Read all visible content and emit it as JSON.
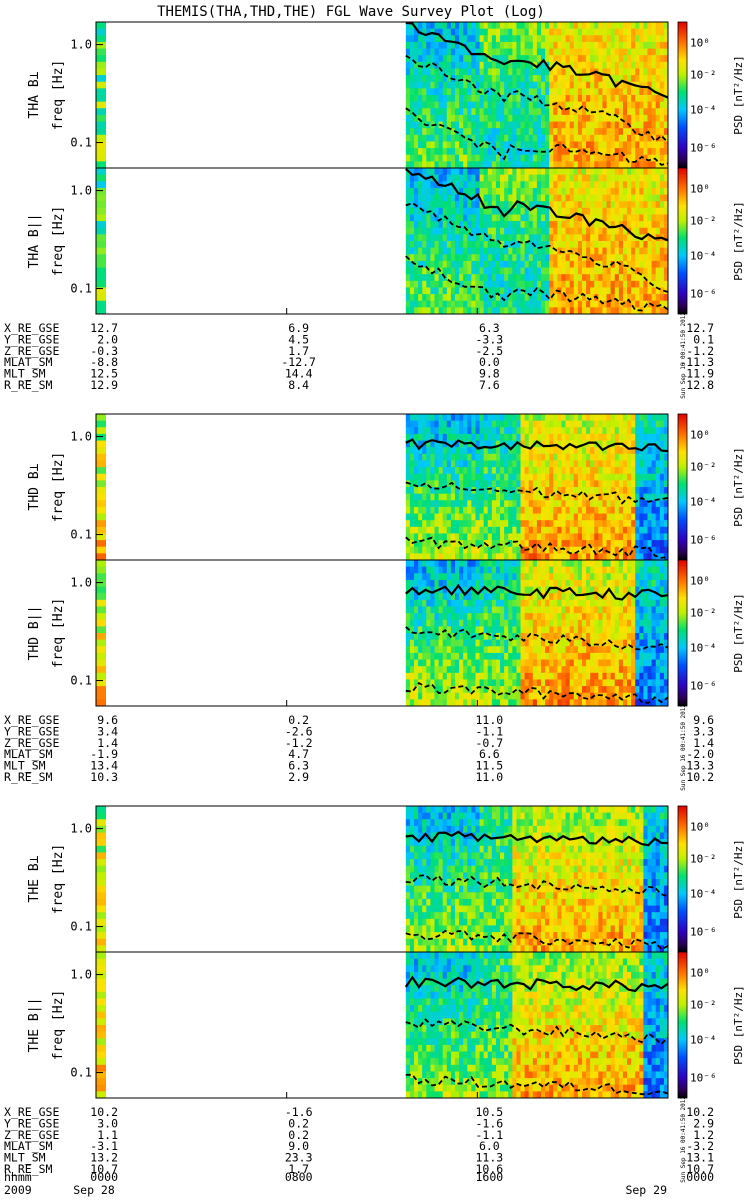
{
  "chart_data": {
    "type": "heatmap",
    "title": "THEMIS(THA,THD,THE) FGL Wave Survey Plot (Log)",
    "x_axis": {
      "row_label": "hhmm",
      "date_label": "2009",
      "start_date": "Sep 28",
      "end_date": "Sep 29",
      "ticks": [
        "0000",
        "0800",
        "1600",
        "0000"
      ]
    },
    "y_axis": {
      "label": "freq [Hz]",
      "scale": "log",
      "range": [
        0.055,
        1.7
      ],
      "ticks": [
        "1.0",
        "0.1"
      ]
    },
    "colorbar": {
      "label": "PSD [nT²/Hz]",
      "scale": "log",
      "range": [
        1e-07,
        10
      ],
      "ticks": [
        "10⁰",
        "10⁻²",
        "10⁻⁴",
        "10⁻⁶"
      ]
    },
    "stamp": "Sun Sep 16 00:41:50 2012",
    "probes": [
      {
        "panels": [
          {
            "name": "THA B⊥"
          },
          {
            "name": "THA B||"
          }
        ],
        "data_start_hhmm": "1300",
        "ephemeris": [
          {
            "label": "X_RE_GSE",
            "values": [
              "12.7",
              "6.9",
              "6.3",
              "12.7"
            ]
          },
          {
            "label": "Y_RE_GSE",
            "values": [
              "2.0",
              "4.5",
              "-3.3",
              "0.1"
            ]
          },
          {
            "label": "Z_RE_GSE",
            "values": [
              "-0.3",
              "1.7",
              "-2.5",
              "-1.2"
            ]
          },
          {
            "label": "MLAT_SM",
            "values": [
              "-8.8",
              "-12.7",
              "0.0",
              "-11.3"
            ]
          },
          {
            "label": "MLT_SM",
            "values": [
              "12.5",
              "14.4",
              "9.8",
              "11.9"
            ]
          },
          {
            "label": "R_RE_SM",
            "values": [
              "12.9",
              "8.4",
              "7.6",
              "12.8"
            ]
          }
        ]
      },
      {
        "panels": [
          {
            "name": "THD B⊥"
          },
          {
            "name": "THD B||"
          }
        ],
        "data_start_hhmm": "1300",
        "ephemeris": [
          {
            "label": "X_RE_GSE",
            "values": [
              "9.6",
              "0.2",
              "11.0",
              "9.6"
            ]
          },
          {
            "label": "Y_RE_GSE",
            "values": [
              "3.4",
              "-2.6",
              "-1.1",
              "3.3"
            ]
          },
          {
            "label": "Z_RE_GSE",
            "values": [
              "1.4",
              "-1.2",
              "-0.7",
              "1.4"
            ]
          },
          {
            "label": "MLAT_SM",
            "values": [
              "-1.9",
              "4.7",
              "6.6",
              "-2.0"
            ]
          },
          {
            "label": "MLT_SM",
            "values": [
              "13.4",
              "6.3",
              "11.5",
              "13.3"
            ]
          },
          {
            "label": "R_RE_SM",
            "values": [
              "10.3",
              "2.9",
              "11.0",
              "10.2"
            ]
          }
        ]
      },
      {
        "panels": [
          {
            "name": "THE B⊥"
          },
          {
            "name": "THE B||"
          }
        ],
        "data_start_hhmm": "1300",
        "ephemeris": [
          {
            "label": "X_RE_GSE",
            "values": [
              "10.2",
              "-1.6",
              "10.5",
              "10.2"
            ]
          },
          {
            "label": "Y_RE_GSE",
            "values": [
              "3.0",
              "0.2",
              "-1.6",
              "2.9"
            ]
          },
          {
            "label": "Z_RE_GSE",
            "values": [
              "1.1",
              "0.2",
              "-1.1",
              "1.2"
            ]
          },
          {
            "label": "MLAT_SM",
            "values": [
              "-3.1",
              "9.0",
              "6.0",
              "-3.2"
            ]
          },
          {
            "label": "MLT_SM",
            "values": [
              "13.2",
              "23.3",
              "11.3",
              "13.1"
            ]
          },
          {
            "label": "R_RE_SM",
            "values": [
              "10.7",
              "1.7",
              "10.6",
              "10.7"
            ]
          }
        ]
      }
    ]
  }
}
